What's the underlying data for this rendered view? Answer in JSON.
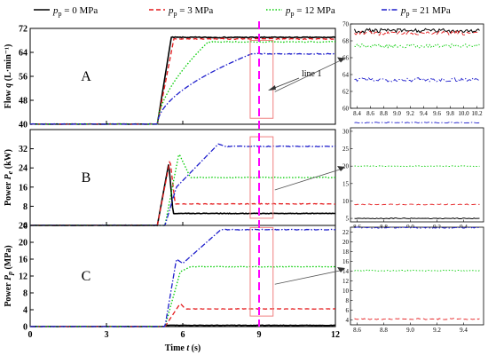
{
  "legend": {
    "entries": [
      {
        "label": "p_p = 0 MPa",
        "sym": "p",
        "sub": "p",
        "rest": "= 0 MPa",
        "color": "#000000",
        "dash": ""
      },
      {
        "label": "p_p = 3 MPa",
        "sym": "p",
        "sub": "p",
        "rest": "= 3 MPa",
        "color": "#e41a1c",
        "dash": "5,3"
      },
      {
        "label": "p_p = 12 MPa",
        "sym": "p",
        "sub": "p",
        "rest": "= 12 MPa",
        "color": "#00cc00",
        "dash": "1.5,2"
      },
      {
        "label": "p_p = 21 MPa",
        "sym": "p",
        "sub": "p",
        "rest": "= 21 MPa",
        "color": "#1f1fcc",
        "dash": "6,2,1.5,2"
      }
    ]
  },
  "colors": {
    "marker_line": "#ff00ff",
    "highlight_box": "#f08080"
  },
  "annotation": {
    "text": "line 1"
  },
  "xaxis": {
    "label_prefix": "Time ",
    "label_var": "t",
    "label_unit": " (s)",
    "ticks": [
      0,
      3,
      6,
      9,
      12
    ],
    "range": [
      0,
      12
    ],
    "marker_x": 9
  },
  "chart_data": [
    {
      "type": "line",
      "panel_label": "A",
      "ylabel": {
        "prefix": "Flow ",
        "var": "q",
        "unit": " (L·min⁻¹)"
      },
      "ylim": [
        40,
        72
      ],
      "yticks": [
        40,
        48,
        56,
        64
      ],
      "yticks_extra": [
        {
          "value": 72,
          "label": "72"
        }
      ],
      "x_start": 5.0,
      "series": [
        {
          "final": 69.0,
          "rise_end": 5.55
        },
        {
          "final": 68.5,
          "rise_end": 5.65
        },
        {
          "final": 67.5,
          "rise_end": 7.0
        },
        {
          "final": 63.5,
          "rise_end": 8.7
        }
      ],
      "highlight_box": {
        "x": [
          8.65,
          9.55
        ],
        "y": [
          42,
          68
        ]
      },
      "inset": {
        "xlim": [
          8.3,
          10.3
        ],
        "ylim": [
          60,
          70
        ],
        "xticks": [
          "8.4",
          "8.6",
          "8.8",
          "9.0",
          "9.2",
          "9.4",
          "9.6",
          "9.8",
          "10.0",
          "10.2"
        ],
        "yticks": [
          "60",
          "62",
          "64",
          "66",
          "68",
          "70"
        ],
        "series_values": [
          69.2,
          68.9,
          67.4,
          63.4
        ]
      }
    },
    {
      "type": "line",
      "panel_label": "B",
      "ylabel": {
        "prefix": "Power ",
        "var": "P",
        "sub": "e",
        "unit": " (kW)"
      },
      "ylim": [
        0,
        40
      ],
      "yticks": [
        8,
        16,
        24,
        32
      ],
      "yticks_extra": [
        {
          "value": 0,
          "label": "0"
        }
      ],
      "x_start": 5.0,
      "series": [
        {
          "final": 5.0,
          "peak": 26.0
        },
        {
          "final": 9.0,
          "peak": 27.5
        },
        {
          "final": 20.0,
          "peak": 30.0
        },
        {
          "final": 33.0,
          "peak": 34.0
        }
      ],
      "highlight_box": {
        "x": [
          8.65,
          9.55
        ],
        "y": [
          3,
          37
        ]
      },
      "inset": {
        "xlim": [
          8.55,
          9.55
        ],
        "ylim": [
          4,
          31
        ],
        "xticks": [
          "8.6",
          "8.8",
          "9.0",
          "9.2",
          "9.4"
        ],
        "yticks": [
          "5",
          "10",
          "15",
          "20",
          "25",
          "30"
        ],
        "series_values": [
          5.0,
          9.0,
          20.0,
          32.5
        ]
      }
    },
    {
      "type": "line",
      "panel_label": "C",
      "ylabel": {
        "prefix": "Power ",
        "var": "P",
        "sub": "p",
        "unit": " (MPa)"
      },
      "ylim": [
        0,
        24
      ],
      "yticks": [
        0,
        4,
        8,
        12,
        16,
        20
      ],
      "yticks_extra": [
        {
          "value": 24,
          "label": "24"
        }
      ],
      "x_start": 5.3,
      "series": [
        {
          "final": 0.3
        },
        {
          "final": 4.2
        },
        {
          "final": 14.2
        },
        {
          "final": 23.0
        }
      ],
      "highlight_box": {
        "x": [
          8.65,
          9.55
        ],
        "y": [
          2.5,
          23.5
        ]
      },
      "inset": {
        "xlim": [
          8.55,
          9.55
        ],
        "ylim": [
          3,
          23
        ],
        "xticks": [
          "8.6",
          "8.8",
          "9.0",
          "9.2",
          "9.4"
        ],
        "yticks": [
          "4",
          "6",
          "8",
          "10",
          "12",
          "14",
          "16",
          "18",
          "20",
          "22"
        ],
        "series_values": [
          null,
          4.2,
          14.1,
          22.9
        ]
      }
    }
  ]
}
